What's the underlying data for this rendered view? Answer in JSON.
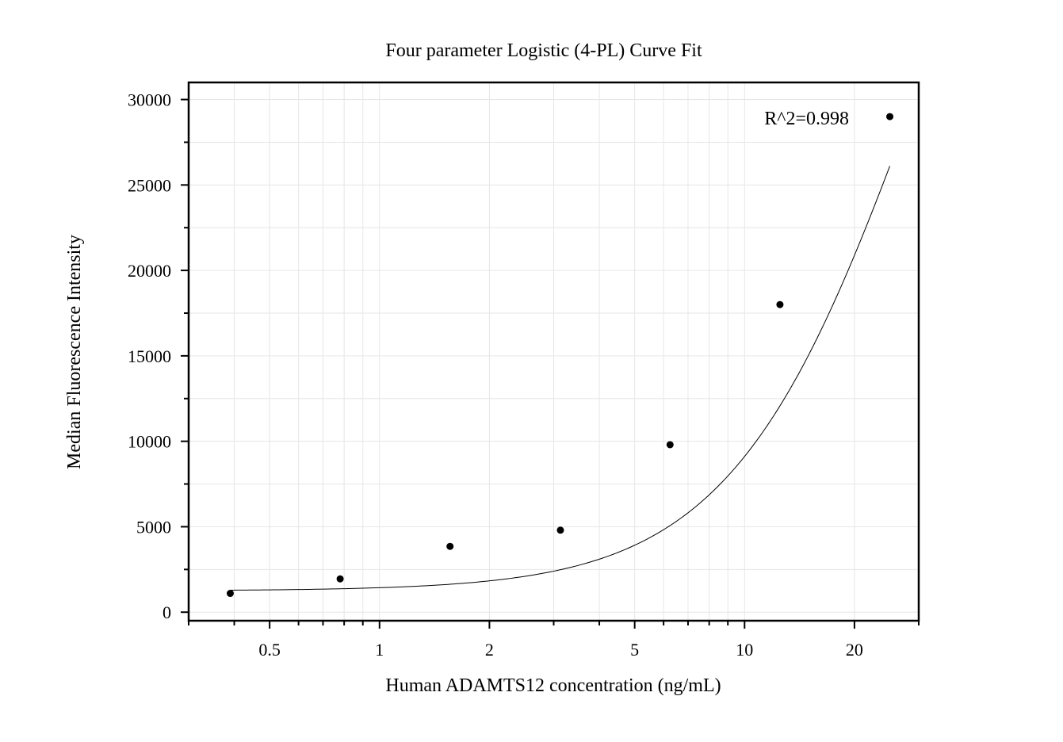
{
  "chart_data": {
    "type": "scatter",
    "title": "Four parameter Logistic (4-PL) Curve Fit",
    "xlabel": "Human ADAMTS12 concentration (ng/mL)",
    "ylabel": "Median Fluorescence Intensity",
    "xscale": "log",
    "xlim": [
      0.3,
      30
    ],
    "ylim": [
      -500,
      31000
    ],
    "xticks": [
      0.5,
      1,
      2,
      5,
      10,
      20
    ],
    "xtick_labels": [
      "0.5",
      "1",
      "2",
      "5",
      "10",
      "20"
    ],
    "yticks": [
      0,
      5000,
      10000,
      15000,
      20000,
      25000,
      30000
    ],
    "ytick_labels": [
      "0",
      "5000",
      "10000",
      "15000",
      "20000",
      "25000",
      "30000"
    ],
    "grid": true,
    "annotation": "R^2=0.998",
    "points": [
      {
        "x": 0.39,
        "y": 1100
      },
      {
        "x": 0.78,
        "y": 1950
      },
      {
        "x": 1.56,
        "y": 3850
      },
      {
        "x": 3.13,
        "y": 4800
      },
      {
        "x": 6.25,
        "y": 9800
      },
      {
        "x": 12.5,
        "y": 18000
      },
      {
        "x": 25,
        "y": 29000
      }
    ],
    "fit_curve": {
      "model": "4PL",
      "A": 1250,
      "B": 1.7,
      "C": 30,
      "D": 60000
    }
  }
}
